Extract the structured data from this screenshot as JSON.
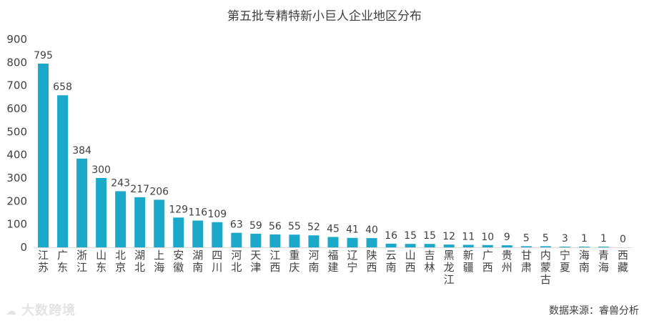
{
  "chart_data": {
    "type": "bar",
    "title": "第五批专精特新小巨人企业地区分布",
    "categories": [
      "江苏",
      "广东",
      "浙江",
      "山东",
      "北京",
      "湖北",
      "上海",
      "安徽",
      "湖南",
      "四川",
      "河北",
      "天津",
      "江西",
      "重庆",
      "河南",
      "福建",
      "辽宁",
      "陕西",
      "云南",
      "山西",
      "吉林",
      "黑龙江",
      "新疆",
      "广西",
      "贵州",
      "甘肃",
      "内蒙古",
      "宁夏",
      "海南",
      "青海",
      "西藏"
    ],
    "values": [
      795,
      658,
      384,
      300,
      243,
      217,
      206,
      129,
      116,
      109,
      63,
      59,
      56,
      55,
      52,
      45,
      41,
      40,
      16,
      15,
      15,
      12,
      11,
      10,
      9,
      5,
      5,
      3,
      1,
      1,
      0
    ],
    "ylim": [
      0,
      900
    ],
    "yticks": [
      0,
      100,
      200,
      300,
      400,
      500,
      600,
      700,
      800,
      900
    ],
    "grid": false,
    "legend": "none",
    "bar_color": "#1ca8c9",
    "axis_color": "#d9d9d9",
    "text_color": "#404040"
  },
  "source": "数据来源：睿兽分析",
  "watermark": "大数跨境",
  "watermark_icon": "cloud-icon"
}
